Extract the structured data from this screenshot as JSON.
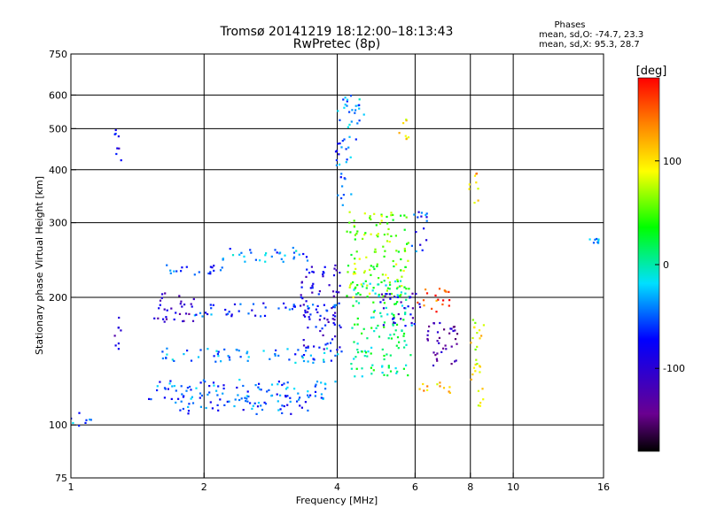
{
  "chart_data": {
    "type": "scatter",
    "title": "Tromsø 20141219 18:12:00–18:13:43",
    "subtitle": "RwPretec (8p)",
    "xlabel": "Frequency [MHz]",
    "ylabel": "Stationary phase Virtual Height [km]",
    "x_scale": "log",
    "y_scale": "log",
    "xlim": [
      1,
      16
    ],
    "ylim": [
      75,
      750
    ],
    "x_ticks": [
      1,
      2,
      4,
      6,
      8,
      10,
      16
    ],
    "y_ticks": [
      75,
      100,
      200,
      300,
      400,
      500,
      600,
      750
    ],
    "grid_x": [
      2,
      4,
      6,
      8,
      10
    ],
    "grid_y": [
      100,
      200,
      300,
      400,
      500,
      600
    ],
    "phase_title": "Phases",
    "phase_o": "mean, sd,O: -74.7, 23.3",
    "phase_x": "mean, sd,X:  95.3, 28.7",
    "colorbar": {
      "label": "[deg]",
      "range": [
        -180,
        180
      ],
      "ticks": [
        100,
        0,
        -100
      ],
      "colormap": "rainbow (black-purple-blue-cyan-green-yellow-red)"
    },
    "clusters": [
      {
        "x": [
          1.55,
          2.2
        ],
        "y": [
          225,
          240
        ],
        "phase": -60
      },
      {
        "x": [
          2.2,
          3.5
        ],
        "y": [
          240,
          262
        ],
        "phase": -40
      },
      {
        "x": [
          1.5,
          1.9
        ],
        "y": [
          175,
          205
        ],
        "phase": -110
      },
      {
        "x": [
          1.9,
          4.0
        ],
        "y": [
          180,
          195
        ],
        "phase": -60
      },
      {
        "x": [
          1.6,
          4.1
        ],
        "y": [
          140,
          152
        ],
        "phase": -40
      },
      {
        "x": [
          1.5,
          4.0
        ],
        "y": [
          115,
          128
        ],
        "phase": -50
      },
      {
        "x": [
          1.7,
          3.5
        ],
        "y": [
          106,
          118
        ],
        "phase": -55
      },
      {
        "x": [
          1.0,
          1.12
        ],
        "y": [
          99,
          108
        ],
        "phase": -40
      },
      {
        "x": [
          3.3,
          4.1
        ],
        "y": [
          150,
          240
        ],
        "phase": -90
      },
      {
        "x": [
          3.95,
          4.3
        ],
        "y": [
          330,
          470
        ],
        "phase": -50
      },
      {
        "x": [
          4.0,
          4.6
        ],
        "y": [
          470,
          600
        ],
        "phase": -40
      },
      {
        "x": [
          4.2,
          5.8
        ],
        "y": [
          200,
          320
        ],
        "phase": 60
      },
      {
        "x": [
          4.3,
          5.9
        ],
        "y": [
          130,
          220
        ],
        "phase": 10
      },
      {
        "x": [
          5.5,
          5.8
        ],
        "y": [
          470,
          540
        ],
        "phase": 110
      },
      {
        "x": [
          5.0,
          6.2
        ],
        "y": [
          170,
          205
        ],
        "phase": -100
      },
      {
        "x": [
          6.0,
          7.2
        ],
        "y": [
          118,
          128
        ],
        "phase": 110
      },
      {
        "x": [
          6.0,
          7.2
        ],
        "y": [
          185,
          210
        ],
        "phase": 150
      },
      {
        "x": [
          6.3,
          7.5
        ],
        "y": [
          135,
          175
        ],
        "phase": -120
      },
      {
        "x": [
          7.9,
          8.4
        ],
        "y": [
          330,
          395
        ],
        "phase": 110
      },
      {
        "x": [
          8.0,
          8.6
        ],
        "y": [
          110,
          180
        ],
        "phase": 90
      },
      {
        "x": [
          5.9,
          6.4
        ],
        "y": [
          250,
          320
        ],
        "phase": -60
      },
      {
        "x": [
          14.8,
          15.6
        ],
        "y": [
          268,
          275
        ],
        "phase": -30
      },
      {
        "x": [
          1.25,
          1.3
        ],
        "y": [
          400,
          500
        ],
        "phase": -90
      },
      {
        "x": [
          1.25,
          1.3
        ],
        "y": [
          150,
          180
        ],
        "phase": -100
      }
    ]
  }
}
